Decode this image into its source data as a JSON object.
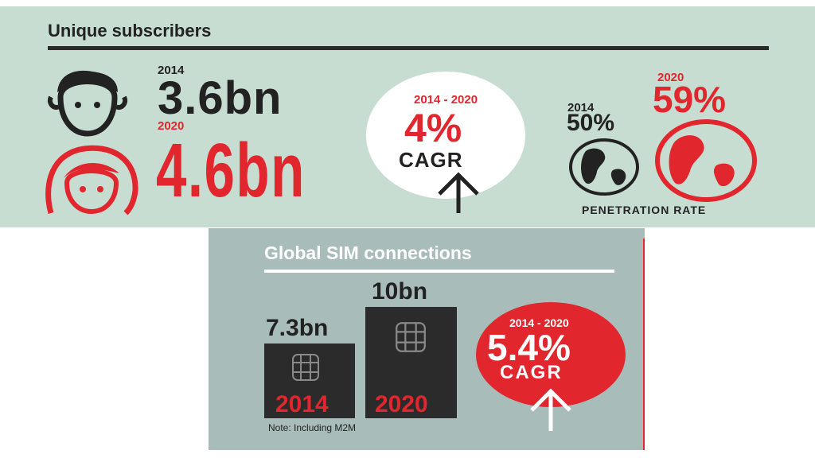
{
  "subscribers": {
    "title": "Unique subscribers",
    "year_2014": "2014",
    "value_2014": "3.6bn",
    "year_2020": "2020",
    "value_2020": "4.6bn",
    "cagr_period": "2014 - 2020",
    "cagr_value": "4%",
    "cagr_label": "CAGR",
    "pen_year_2014": "2014",
    "pen_value_2014": "50%",
    "pen_year_2020": "2020",
    "pen_value_2020": "59%",
    "pen_label": "PENETRATION RATE"
  },
  "sim": {
    "title": "Global SIM connections",
    "value_2014": "7.3bn",
    "year_2014": "2014",
    "value_2020": "10bn",
    "year_2020": "2020",
    "note": "Note: Including M2M",
    "cagr_period": "2014 - 2020",
    "cagr_value": "5.4%",
    "cagr_label": "CAGR"
  },
  "colors": {
    "accent_red": "#e1262d",
    "panel_green": "#c7ddd2",
    "panel_gray": "#a8bcb9",
    "dark": "#222222"
  }
}
